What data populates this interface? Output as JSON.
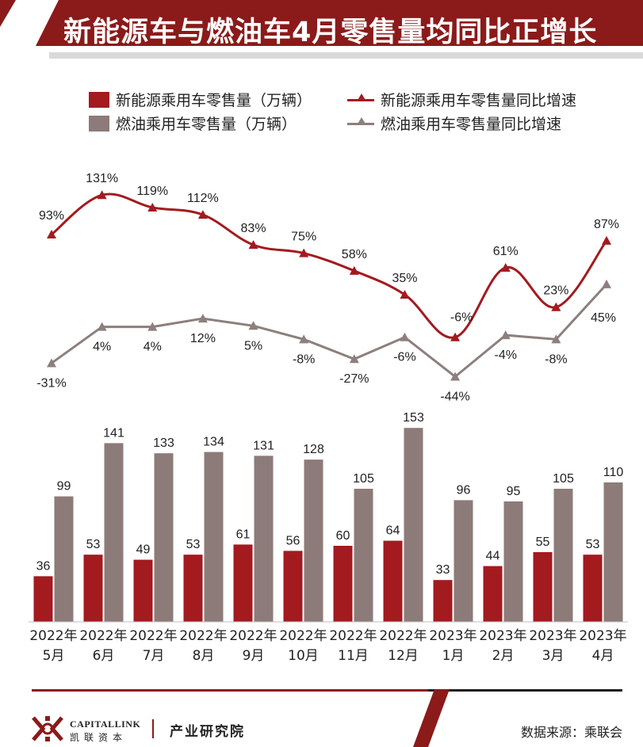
{
  "header": {
    "title": "新能源车与燃油车4月零售量均同比正增长"
  },
  "legend": {
    "nev_sales": "新能源乘用车零售量（万辆）",
    "fuel_sales": "燃油乘用车零售量（万辆）",
    "nev_yoy": "新能源乘用车零售量同比增速",
    "fuel_yoy": "燃油乘用车零售量同比增速"
  },
  "colors": {
    "accent": "#8b1a1a",
    "nev": "#a31a1f",
    "fuel": "#8c7b79",
    "fuel_line": "#8c7f7d"
  },
  "chart_data": {
    "type": "bar",
    "categories": [
      [
        "2022年",
        "5月"
      ],
      [
        "2022年",
        "6月"
      ],
      [
        "2022年",
        "7月"
      ],
      [
        "2022年",
        "8月"
      ],
      [
        "2022年",
        "9月"
      ],
      [
        "2022年",
        "10月"
      ],
      [
        "2022年",
        "11月"
      ],
      [
        "2022年",
        "12月"
      ],
      [
        "2023年",
        "1月"
      ],
      [
        "2023年",
        "2月"
      ],
      [
        "2023年",
        "3月"
      ],
      [
        "2023年",
        "4月"
      ]
    ],
    "bar_series": [
      {
        "name": "新能源乘用车零售量（万辆）",
        "values": [
          36,
          53,
          49,
          53,
          61,
          56,
          60,
          64,
          33,
          44,
          55,
          53
        ]
      },
      {
        "name": "燃油乘用车零售量（万辆）",
        "values": [
          99,
          141,
          133,
          134,
          131,
          128,
          105,
          153,
          96,
          95,
          105,
          110
        ]
      }
    ],
    "line_series": [
      {
        "name": "新能源乘用车零售量同比增速",
        "values": [
          93,
          131,
          119,
          112,
          83,
          75,
          58,
          35,
          -6,
          61,
          23,
          87
        ]
      },
      {
        "name": "燃油乘用车零售量同比增速",
        "values": [
          -31,
          4,
          4,
          12,
          5,
          -8,
          -27,
          -6,
          -44,
          -4,
          -8,
          45
        ]
      }
    ],
    "unit_bars": "万辆",
    "unit_lines": "%"
  },
  "footer": {
    "logo_en": "CAPITALLINK",
    "logo_cn": "凯联资本",
    "institute": "产业研究院",
    "source": "数据来源：乘联会"
  }
}
